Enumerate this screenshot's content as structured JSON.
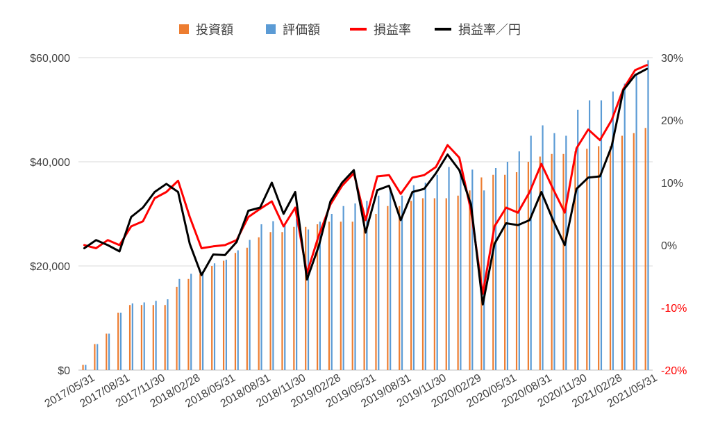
{
  "chart_data": {
    "type": "bar",
    "legend_position": "top",
    "legend": [
      {
        "label": "投資額",
        "color": "#ED7D31",
        "kind": "bar"
      },
      {
        "label": "評価額",
        "color": "#5B9BD5",
        "kind": "bar"
      },
      {
        "label": "損益率",
        "color": "#FF0000",
        "kind": "line"
      },
      {
        "label": "損益率／円",
        "color": "#000000",
        "kind": "line"
      }
    ],
    "x_tick_labels": [
      "2017/05/31",
      "2017/08/31",
      "2017/11/30",
      "2018/02/28",
      "2018/05/31",
      "2018/08/31",
      "2018/11/30",
      "2019/02/28",
      "2019/05/31",
      "2019/08/31",
      "2019/11/30",
      "2020/02/29",
      "2020/05/31",
      "2020/08/31",
      "2020/11/30",
      "2021/02/28",
      "2021/05/31"
    ],
    "y_left": {
      "min": 0,
      "max": 60000,
      "ticks": [
        "$0",
        "$20,000",
        "$40,000",
        "$60,000"
      ],
      "tick_values": [
        0,
        20000,
        40000,
        60000
      ]
    },
    "y_right": {
      "min": -20,
      "max": 30,
      "ticks": [
        "-20%",
        "-10%",
        "0%",
        "10%",
        "20%",
        "30%"
      ],
      "tick_values": [
        -20,
        -10,
        0,
        10,
        20,
        30
      ],
      "tick_color": "#FF0000"
    },
    "months": [
      "2017/05",
      "2017/06",
      "2017/07",
      "2017/08",
      "2017/09",
      "2017/10",
      "2017/11",
      "2017/12",
      "2018/01",
      "2018/02",
      "2018/03",
      "2018/04",
      "2018/05",
      "2018/06",
      "2018/07",
      "2018/08",
      "2018/09",
      "2018/10",
      "2018/11",
      "2018/12",
      "2019/01",
      "2019/02",
      "2019/03",
      "2019/04",
      "2019/05",
      "2019/06",
      "2019/07",
      "2019/08",
      "2019/09",
      "2019/10",
      "2019/11",
      "2019/12",
      "2020/01",
      "2020/02",
      "2020/03",
      "2020/04",
      "2020/05",
      "2020/06",
      "2020/07",
      "2020/08",
      "2020/09",
      "2020/10",
      "2020/11",
      "2020/12",
      "2021/01",
      "2021/02",
      "2021/03",
      "2021/04",
      "2021/05"
    ],
    "series": [
      {
        "name": "投資額",
        "values": [
          1000,
          5000,
          7000,
          11000,
          12500,
          12500,
          12500,
          12500,
          16000,
          17500,
          18500,
          20000,
          21000,
          22500,
          23500,
          25500,
          26500,
          26500,
          27500,
          27500,
          28000,
          28500,
          28500,
          28500,
          29000,
          30000,
          31500,
          31500,
          32500,
          33000,
          33000,
          33000,
          33500,
          34500,
          37000,
          37500,
          37500,
          38000,
          40000,
          41000,
          41500,
          41500,
          42000,
          42500,
          43000,
          43000,
          45000,
          45500,
          46500
        ]
      },
      {
        "name": "評価額",
        "values": [
          1000,
          5000,
          7000,
          11000,
          12800,
          13000,
          13300,
          13600,
          17500,
          18500,
          19000,
          20500,
          21200,
          23000,
          25000,
          28000,
          28600,
          28000,
          29000,
          27000,
          28500,
          30000,
          31500,
          32000,
          32500,
          33500,
          35000,
          33500,
          35500,
          36000,
          37500,
          39000,
          38500,
          38500,
          34500,
          38800,
          40000,
          42000,
          45000,
          47000,
          45500,
          45000,
          50000,
          51800,
          51800,
          53500,
          55000,
          57000,
          59500
        ]
      },
      {
        "name": "損益率",
        "values": [
          0,
          -0.5,
          0.8,
          0,
          3,
          3.8,
          7.5,
          8.5,
          10.3,
          4.5,
          -0.5,
          -0.2,
          0,
          0.8,
          4.5,
          5.8,
          7,
          3,
          6,
          -4.5,
          1.5,
          6.5,
          9.5,
          11.5,
          4,
          11,
          11.2,
          8.2,
          10.8,
          11.2,
          12.5,
          16,
          14,
          5.5,
          -7.8,
          3,
          6,
          5.2,
          8.5,
          13,
          9,
          5.2,
          15.5,
          18.5,
          16.8,
          20,
          25,
          28,
          28.8
        ]
      },
      {
        "name": "損益率／円",
        "values": [
          -0.5,
          0.8,
          0,
          -1,
          4.5,
          6,
          8.5,
          9.8,
          8.5,
          0.2,
          -4.8,
          -1.5,
          -1.6,
          0.5,
          5.5,
          6,
          10,
          5,
          8.5,
          -5.5,
          -0.2,
          7,
          10,
          12,
          2,
          8.8,
          9.5,
          4,
          8.5,
          9,
          11.5,
          14.5,
          12,
          6.5,
          -9.5,
          0.2,
          3.5,
          3.2,
          4,
          8.5,
          4,
          0,
          9,
          10.8,
          11,
          15.8,
          24.8,
          27.2,
          28.2
        ]
      }
    ]
  }
}
